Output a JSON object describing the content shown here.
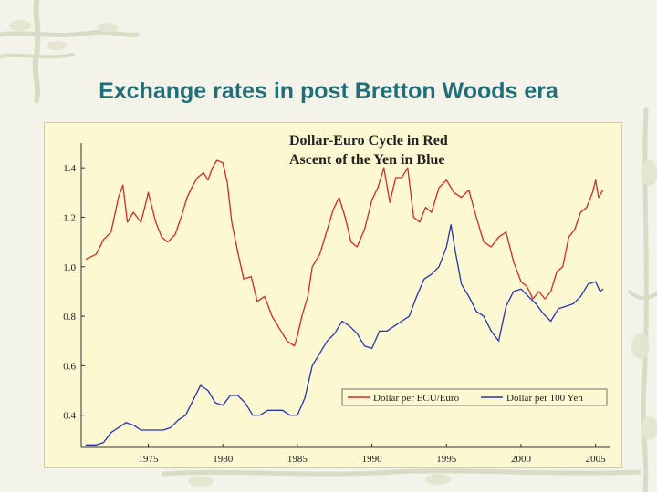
{
  "slide": {
    "title": "Exchange rates in post Bretton Woods era"
  },
  "chart_data": {
    "type": "line",
    "title": "Dollar-Euro Cycle in Red",
    "subtitle": "Ascent of the Yen in Blue",
    "xlabel": "",
    "ylabel": "",
    "xlim": [
      1970.5,
      2006
    ],
    "ylim": [
      0.27,
      1.5
    ],
    "x_ticks": [
      1975,
      1980,
      1985,
      1990,
      1995,
      2000,
      2005
    ],
    "y_ticks": [
      0.4,
      0.6,
      0.8,
      1.0,
      1.2,
      1.4
    ],
    "x_tick_labels": [
      "1975",
      "1980",
      "1985",
      "1990",
      "1995",
      "2000",
      "2005"
    ],
    "y_tick_labels": [
      "0.4",
      "0.6",
      "0.8",
      "1.0",
      "1.2",
      "1.4"
    ],
    "legend": {
      "placement": "bottom-right"
    },
    "series": [
      {
        "name": "Dollar per ECU/Euro",
        "color": "#d42a1e",
        "x": [
          1970.8,
          1971.5,
          1972.0,
          1972.5,
          1973.0,
          1973.3,
          1973.6,
          1974.0,
          1974.5,
          1974.8,
          1975.0,
          1975.5,
          1975.9,
          1976.3,
          1976.8,
          1977.2,
          1977.6,
          1978.0,
          1978.3,
          1978.7,
          1979.0,
          1979.3,
          1979.6,
          1980.0,
          1980.3,
          1980.6,
          1981.0,
          1981.4,
          1981.9,
          1982.3,
          1982.8,
          1983.3,
          1983.8,
          1984.3,
          1984.8,
          1985.0,
          1985.3,
          1985.7,
          1986.0,
          1986.5,
          1987.0,
          1987.4,
          1987.8,
          1988.2,
          1988.6,
          1989.0,
          1989.5,
          1990.0,
          1990.4,
          1990.8,
          1991.2,
          1991.6,
          1992.0,
          1992.4,
          1992.8,
          1993.2,
          1993.6,
          1994.0,
          1994.5,
          1995.0,
          1995.5,
          1996.0,
          1996.5,
          1997.0,
          1997.5,
          1998.0,
          1998.5,
          1999.0,
          1999.5,
          2000.0,
          2000.4,
          2000.8,
          2001.2,
          2001.6,
          2002.0,
          2002.4,
          2002.8,
          2003.2,
          2003.6,
          2004.0,
          2004.4,
          2004.8,
          2005.0,
          2005.2,
          2005.5
        ],
        "y": [
          1.03,
          1.05,
          1.11,
          1.14,
          1.28,
          1.33,
          1.18,
          1.22,
          1.18,
          1.25,
          1.3,
          1.18,
          1.12,
          1.1,
          1.13,
          1.2,
          1.28,
          1.33,
          1.36,
          1.38,
          1.35,
          1.4,
          1.43,
          1.42,
          1.34,
          1.18,
          1.06,
          0.95,
          0.96,
          0.86,
          0.88,
          0.8,
          0.75,
          0.7,
          0.68,
          0.72,
          0.8,
          0.88,
          1.0,
          1.05,
          1.15,
          1.23,
          1.28,
          1.2,
          1.1,
          1.08,
          1.15,
          1.27,
          1.32,
          1.4,
          1.26,
          1.36,
          1.36,
          1.4,
          1.2,
          1.18,
          1.24,
          1.22,
          1.32,
          1.35,
          1.3,
          1.28,
          1.31,
          1.2,
          1.1,
          1.08,
          1.12,
          1.14,
          1.02,
          0.94,
          0.92,
          0.87,
          0.9,
          0.87,
          0.9,
          0.98,
          1.0,
          1.12,
          1.15,
          1.22,
          1.24,
          1.3,
          1.35,
          1.28,
          1.31
        ]
      },
      {
        "name": "Dollar per 100 Yen",
        "color": "#2733b8",
        "x": [
          1970.8,
          1971.5,
          1972.0,
          1972.5,
          1973.0,
          1973.5,
          1974.0,
          1974.5,
          1975.0,
          1975.5,
          1976.0,
          1976.5,
          1977.0,
          1977.5,
          1978.0,
          1978.5,
          1979.0,
          1979.5,
          1980.0,
          1980.5,
          1981.0,
          1981.5,
          1982.0,
          1982.5,
          1983.0,
          1983.5,
          1984.0,
          1984.5,
          1985.0,
          1985.5,
          1986.0,
          1986.5,
          1987.0,
          1987.5,
          1988.0,
          1988.5,
          1989.0,
          1989.5,
          1990.0,
          1990.5,
          1991.0,
          1991.5,
          1992.0,
          1992.5,
          1993.0,
          1993.5,
          1994.0,
          1994.5,
          1995.0,
          1995.3,
          1995.6,
          1996.0,
          1996.5,
          1997.0,
          1997.5,
          1998.0,
          1998.5,
          1999.0,
          1999.5,
          2000.0,
          2000.5,
          2001.0,
          2001.5,
          2002.0,
          2002.5,
          2003.0,
          2003.5,
          2004.0,
          2004.5,
          2005.0,
          2005.3,
          2005.5
        ],
        "y": [
          0.28,
          0.28,
          0.29,
          0.33,
          0.35,
          0.37,
          0.36,
          0.34,
          0.34,
          0.34,
          0.34,
          0.35,
          0.38,
          0.4,
          0.46,
          0.52,
          0.5,
          0.45,
          0.44,
          0.48,
          0.48,
          0.45,
          0.4,
          0.4,
          0.42,
          0.42,
          0.42,
          0.4,
          0.4,
          0.47,
          0.6,
          0.65,
          0.7,
          0.73,
          0.78,
          0.76,
          0.73,
          0.68,
          0.67,
          0.74,
          0.74,
          0.76,
          0.78,
          0.8,
          0.88,
          0.95,
          0.97,
          1.0,
          1.08,
          1.17,
          1.06,
          0.93,
          0.88,
          0.82,
          0.8,
          0.74,
          0.7,
          0.84,
          0.9,
          0.91,
          0.88,
          0.85,
          0.81,
          0.78,
          0.83,
          0.84,
          0.85,
          0.88,
          0.93,
          0.94,
          0.9,
          0.91
        ]
      }
    ]
  }
}
